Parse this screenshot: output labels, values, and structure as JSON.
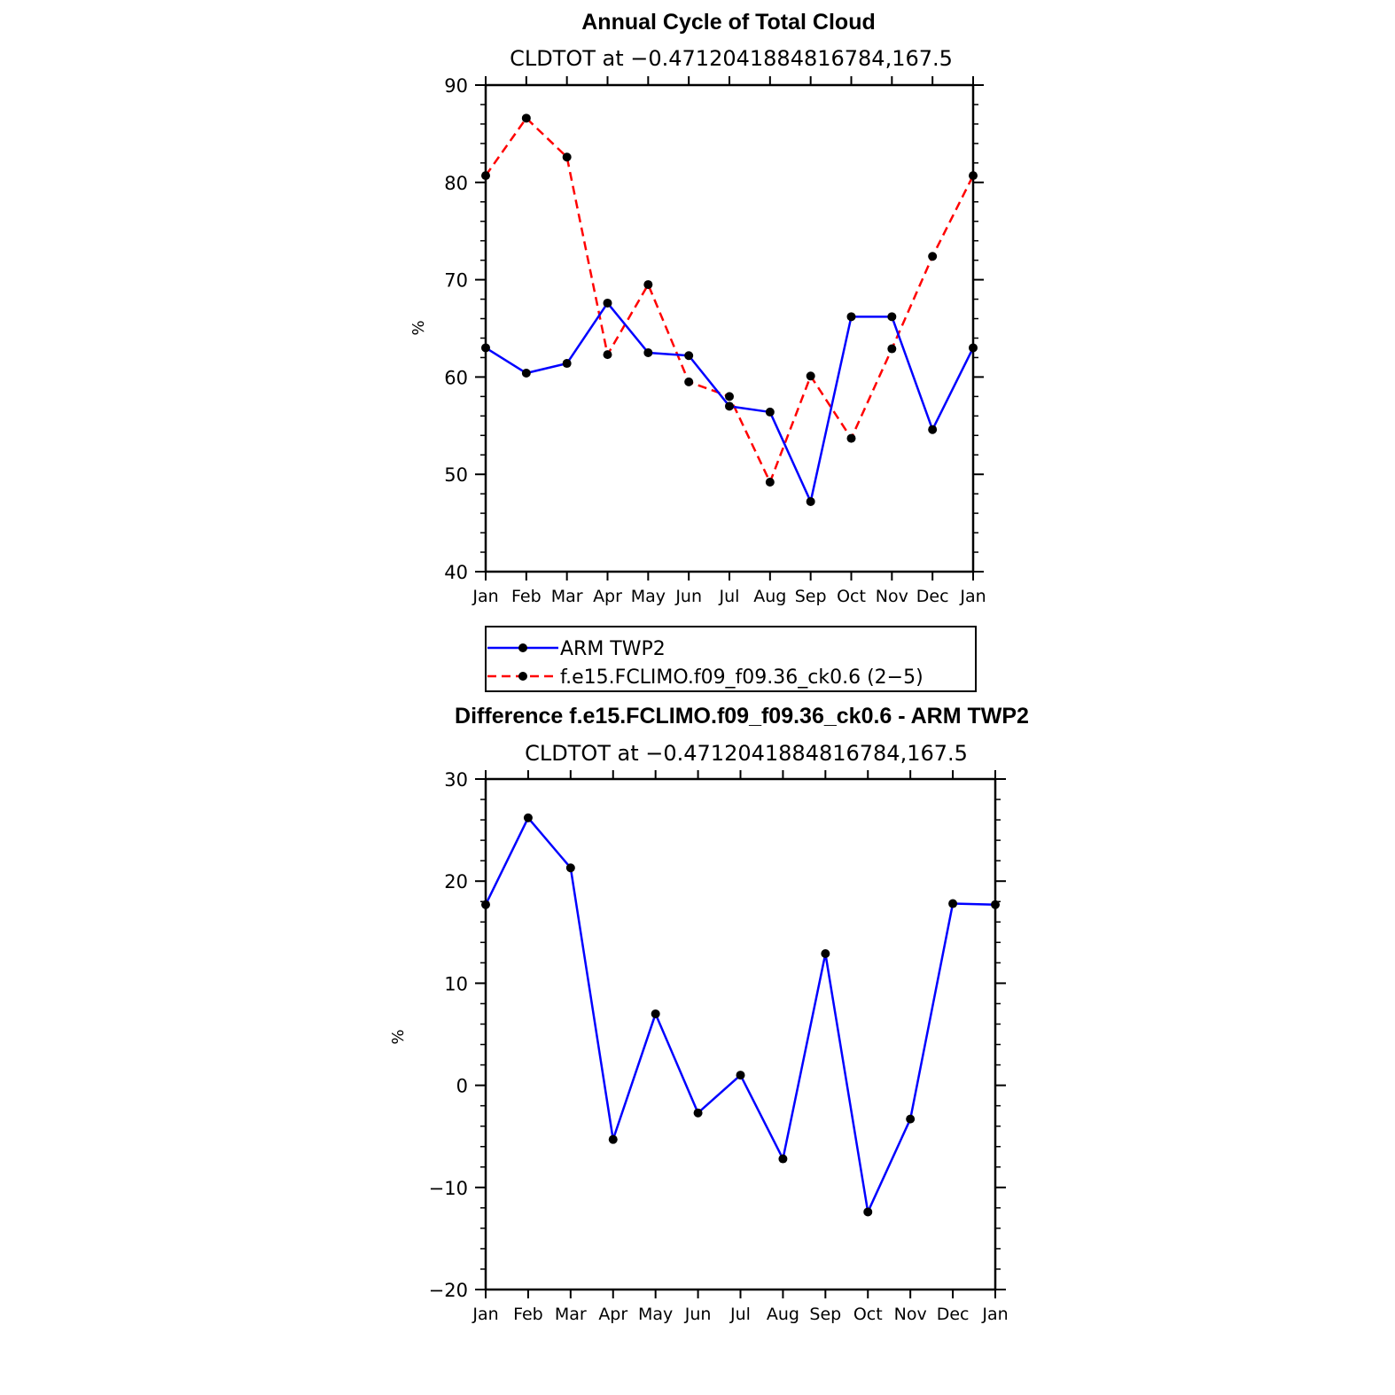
{
  "chart_data": [
    {
      "type": "line",
      "title": "Annual Cycle of Total Cloud",
      "subtitle": "CLDTOT at −0.4712041884816784,167.5",
      "ylabel": "%",
      "xlabel": "",
      "ylim": [
        40,
        90
      ],
      "yticks": [
        40,
        50,
        60,
        70,
        80,
        90
      ],
      "categories": [
        "Jan",
        "Feb",
        "Mar",
        "Apr",
        "May",
        "Jun",
        "Jul",
        "Aug",
        "Sep",
        "Oct",
        "Nov",
        "Dec",
        "Jan"
      ],
      "series": [
        {
          "name": "ARM TWP2",
          "color": "#0000ff",
          "style": "solid",
          "values": [
            63.0,
            60.4,
            61.4,
            67.6,
            62.5,
            62.2,
            57.0,
            56.4,
            47.2,
            66.2,
            66.2,
            54.6,
            63.0
          ]
        },
        {
          "name": "f.e15.FCLIMO.f09_f09.36_ck0.6 (2−5)",
          "color": "#ff0000",
          "style": "dashed",
          "values": [
            80.7,
            86.6,
            82.6,
            62.3,
            69.5,
            59.5,
            58.0,
            49.2,
            60.1,
            53.7,
            62.9,
            72.4,
            80.7
          ]
        }
      ],
      "legend_placement": "bottom"
    },
    {
      "type": "line",
      "title": "Difference f.e15.FCLIMO.f09_f09.36_ck0.6 - ARM TWP2",
      "subtitle": "CLDTOT at −0.4712041884816784,167.5",
      "ylabel": "%",
      "xlabel": "",
      "ylim": [
        -20,
        30
      ],
      "yticks": [
        -20,
        -10,
        0,
        10,
        20,
        30
      ],
      "ytick_labels": [
        "−20",
        "−10",
        "0",
        "10",
        "20",
        "30"
      ],
      "categories": [
        "Jan",
        "Feb",
        "Mar",
        "Apr",
        "May",
        "Jun",
        "Jul",
        "Aug",
        "Sep",
        "Oct",
        "Nov",
        "Dec",
        "Jan"
      ],
      "series": [
        {
          "color": "#0000ff",
          "style": "solid",
          "values": [
            17.7,
            26.2,
            21.3,
            -5.3,
            7.0,
            -2.7,
            1.0,
            -7.2,
            12.9,
            -12.4,
            -3.3,
            17.8,
            17.7
          ]
        }
      ]
    }
  ]
}
